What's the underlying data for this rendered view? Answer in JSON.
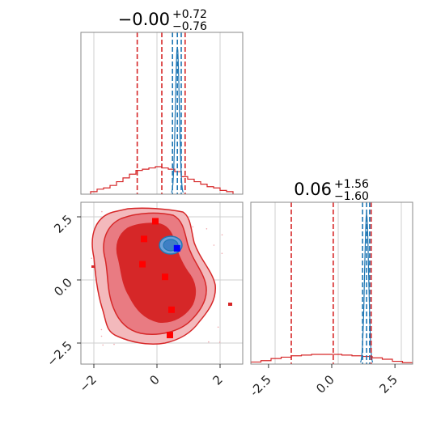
{
  "chart_data": [
    {
      "type": "histogram",
      "panel": "top-left",
      "title": {
        "value": "−0.00",
        "plus": "+0.72",
        "minus": "−0.76"
      },
      "x_range": [
        -2.5,
        2.5
      ],
      "grid": true,
      "posterior": {
        "color": "#d62728",
        "bins": [
          -2.1,
          -1.9,
          -1.7,
          -1.5,
          -1.3,
          -1.1,
          -0.9,
          -0.7,
          -0.5,
          -0.3,
          -0.1,
          0.1,
          0.3,
          0.5,
          0.7,
          0.9,
          1.1,
          1.3,
          1.5,
          1.7,
          1.9,
          2.1
        ],
        "counts": [
          0.02,
          0.04,
          0.05,
          0.07,
          0.1,
          0.13,
          0.16,
          0.19,
          0.2,
          0.21,
          0.22,
          0.21,
          0.2,
          0.18,
          0.14,
          0.12,
          0.1,
          0.08,
          0.06,
          0.05,
          0.03,
          0.02
        ],
        "quantiles": [
          -0.76,
          0.0,
          0.72
        ]
      },
      "reference": {
        "color": "#1f77b4",
        "peak_x": 0.48,
        "quantiles": [
          0.33,
          0.48,
          0.6
        ]
      }
    },
    {
      "type": "histogram",
      "panel": "bottom-right",
      "title": {
        "value": "0.06",
        "plus": "+1.56",
        "minus": "−1.60"
      },
      "x_range": [
        -3.2,
        3.2
      ],
      "x_ticks": [
        "-2.5",
        "0.0",
        "2.5"
      ],
      "grid": true,
      "posterior": {
        "color": "#d62728",
        "bins": [
          -3.0,
          -2.6,
          -2.2,
          -1.8,
          -1.4,
          -1.0,
          -0.6,
          -0.2,
          0.2,
          0.6,
          1.0,
          1.4,
          1.8,
          2.2,
          2.6,
          3.0
        ],
        "counts": [
          0.03,
          0.05,
          0.08,
          0.1,
          0.12,
          0.13,
          0.14,
          0.14,
          0.14,
          0.13,
          0.12,
          0.11,
          0.09,
          0.07,
          0.04,
          0.02
        ],
        "quantiles": [
          -1.6,
          0.06,
          1.56
        ]
      },
      "reference": {
        "color": "#1f77b4",
        "peak_x": 1.38,
        "quantiles": [
          1.22,
          1.38,
          1.5
        ]
      }
    },
    {
      "type": "scatter",
      "panel": "bottom-left",
      "x_range": [
        -2.5,
        2.5
      ],
      "y_range": [
        -3.2,
        3.2
      ],
      "x_ticks": [
        "−2",
        "0",
        "2"
      ],
      "y_ticks": [
        "2.5",
        "0.0",
        "−2.5"
      ],
      "grid": true,
      "posterior_color": "#d62728",
      "reference_color": "#1f77b4",
      "points": [
        {
          "x": -0.2,
          "y": 2.45,
          "color": "#ff0000"
        },
        {
          "x": -0.55,
          "y": 1.75,
          "color": "#ff0000"
        },
        {
          "x": -0.6,
          "y": 0.75,
          "color": "#ff0000"
        },
        {
          "x": 0.1,
          "y": 0.25,
          "color": "#ff0000"
        },
        {
          "x": 0.3,
          "y": -1.05,
          "color": "#ff0000"
        },
        {
          "x": 0.25,
          "y": -2.05,
          "color": "#ff0000"
        },
        {
          "x": 0.47,
          "y": 1.38,
          "color": "#0000ff"
        }
      ]
    }
  ]
}
